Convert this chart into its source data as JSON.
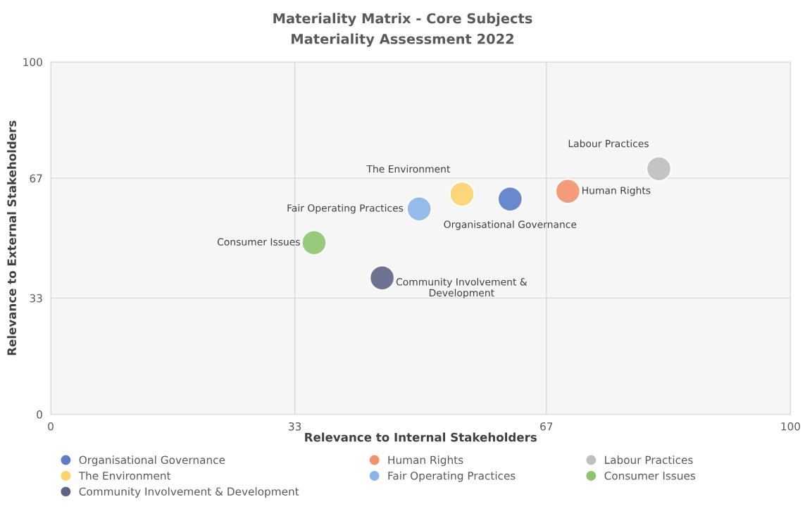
{
  "chart_data": {
    "type": "bubble",
    "title": "Materiality Matrix - Core Subjects",
    "subtitle": "Materiality Assessment 2022",
    "xlabel": "Relevance to Internal Stakeholders",
    "ylabel": "Relevance to External Stakeholders",
    "xlim": [
      0,
      100
    ],
    "ylim": [
      0,
      100
    ],
    "xticks": [
      0,
      33,
      67,
      100
    ],
    "yticks": [
      0,
      33,
      67,
      100
    ],
    "grid": true,
    "legend": "bottom",
    "series": [
      {
        "name": "Organisational Governance",
        "color": "#5b7cc9",
        "x": [
          62.1
        ],
        "values": [
          61.1
        ],
        "sizes": [
          1
        ]
      },
      {
        "name": "Human Rights",
        "color": "#f2926b",
        "x": [
          69.9
        ],
        "values": [
          63.3
        ],
        "sizes": [
          1
        ]
      },
      {
        "name": "Labour Practices",
        "color": "#bfbfbf",
        "x": [
          82.2
        ],
        "values": [
          69.7
        ],
        "sizes": [
          1
        ]
      },
      {
        "name": "The Environment",
        "color": "#fdd46c",
        "x": [
          55.6
        ],
        "values": [
          62.5
        ],
        "sizes": [
          1
        ]
      },
      {
        "name": "Fair Operating Practices",
        "color": "#8bb5e7",
        "x": [
          49.8
        ],
        "values": [
          58.3
        ],
        "sizes": [
          1
        ]
      },
      {
        "name": "Consumer Issues",
        "color": "#8dc66b",
        "x": [
          35.6
        ],
        "values": [
          48.7
        ],
        "sizes": [
          1
        ]
      },
      {
        "name": "Community Involvement & Development",
        "color": "#5d6485",
        "x": [
          44.8
        ],
        "values": [
          38.7
        ],
        "sizes": [
          1
        ]
      }
    ]
  }
}
